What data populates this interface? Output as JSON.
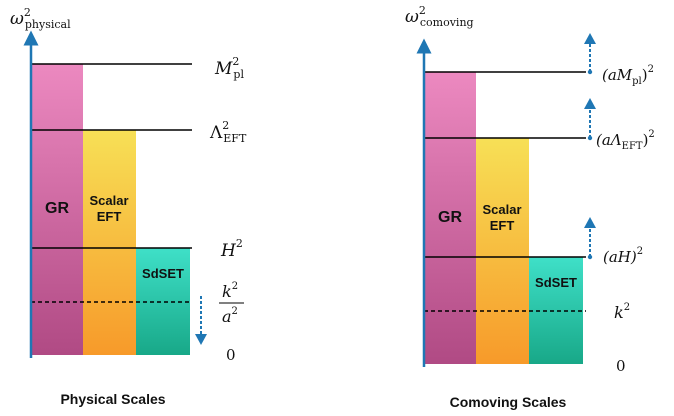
{
  "colors": {
    "axis": "#1f77b4",
    "gr_top": "#ec89c0",
    "gr_bottom": "#b04a84",
    "scalar_top": "#f7e056",
    "scalar_bottom": "#f79a2a",
    "sdset_top": "#3fe0c8",
    "sdset_bottom": "#18a888"
  },
  "left": {
    "axis_label": {
      "base": "ω",
      "sup": "2",
      "sub": "physical"
    },
    "bars": {
      "gr": "GR",
      "scalar_line1": "Scalar",
      "scalar_line2": "EFT",
      "sdset": "SdSET"
    },
    "levels": {
      "mpl": {
        "base": "M",
        "sup": "2",
        "sub": "pl"
      },
      "lambda": {
        "base": "Λ",
        "sup": "2",
        "sub": "EFT"
      },
      "h": {
        "base": "H",
        "sup": "2"
      },
      "k_over_a": {
        "num_base": "k",
        "num_sup": "2",
        "den_base": "a",
        "den_sup": "2"
      },
      "zero": "0"
    },
    "caption": "Physical Scales"
  },
  "right": {
    "axis_label": {
      "base": "ω",
      "sup": "2",
      "sub": "comoving"
    },
    "bars": {
      "gr": "GR",
      "scalar_line1": "Scalar",
      "scalar_line2": "EFT",
      "sdset": "SdSET"
    },
    "levels": {
      "a_mpl": {
        "open": "(aM",
        "sub": "pl",
        "close": ")",
        "sup": "2"
      },
      "a_lambda": {
        "open": "(aΛ",
        "sub": "EFT",
        "close": ")",
        "sup": "2"
      },
      "a_h": {
        "text": "(aH)",
        "sup": "2"
      },
      "k": {
        "base": "k",
        "sup": "2"
      },
      "zero": "0"
    },
    "caption": "Comoving Scales"
  }
}
